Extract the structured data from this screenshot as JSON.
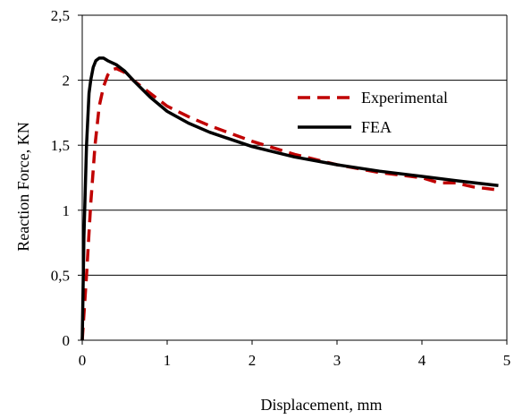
{
  "chart_data": {
    "type": "line",
    "title": "",
    "xlabel": "Displacement, mm",
    "ylabel": "Reaction Force, KN",
    "xlim": [
      0,
      5
    ],
    "ylim": [
      0,
      2.5
    ],
    "xticks": [
      {
        "value": 0,
        "label": "0"
      },
      {
        "value": 1,
        "label": "1"
      },
      {
        "value": 2,
        "label": "2"
      },
      {
        "value": 3,
        "label": "3"
      },
      {
        "value": 4,
        "label": "4"
      },
      {
        "value": 5,
        "label": "5"
      }
    ],
    "yticks": [
      {
        "value": 0,
        "label": "0"
      },
      {
        "value": 0.5,
        "label": "0,5"
      },
      {
        "value": 1,
        "label": "1"
      },
      {
        "value": 1.5,
        "label": "1,5"
      },
      {
        "value": 2,
        "label": "2"
      },
      {
        "value": 2.5,
        "label": "2,5"
      }
    ],
    "grid": "horizontal",
    "legend_position": "right",
    "series": [
      {
        "name": "Experimental",
        "color": "#c00000",
        "style": "dashed",
        "x": [
          0,
          0.05,
          0.1,
          0.15,
          0.2,
          0.25,
          0.3,
          0.35,
          0.4,
          0.5,
          0.6,
          0.8,
          1.0,
          1.25,
          1.5,
          2.0,
          2.5,
          3.0,
          3.5,
          4.0,
          4.2,
          4.4,
          4.6,
          4.85
        ],
        "y": [
          0,
          0.5,
          1.05,
          1.5,
          1.8,
          1.95,
          2.04,
          2.08,
          2.09,
          2.06,
          2.0,
          1.9,
          1.8,
          1.72,
          1.65,
          1.53,
          1.43,
          1.35,
          1.29,
          1.25,
          1.21,
          1.21,
          1.18,
          1.16
        ]
      },
      {
        "name": "FEA",
        "color": "#000000",
        "style": "solid",
        "x": [
          0,
          0.02,
          0.05,
          0.08,
          0.1,
          0.13,
          0.16,
          0.2,
          0.25,
          0.3,
          0.4,
          0.5,
          0.6,
          0.8,
          1.0,
          1.25,
          1.5,
          2.0,
          2.5,
          3.0,
          3.5,
          4.0,
          4.5,
          4.9
        ],
        "y": [
          0,
          0.8,
          1.5,
          1.9,
          2.0,
          2.1,
          2.15,
          2.17,
          2.17,
          2.15,
          2.12,
          2.07,
          2.0,
          1.87,
          1.76,
          1.67,
          1.6,
          1.49,
          1.41,
          1.35,
          1.3,
          1.26,
          1.22,
          1.19
        ]
      }
    ]
  }
}
